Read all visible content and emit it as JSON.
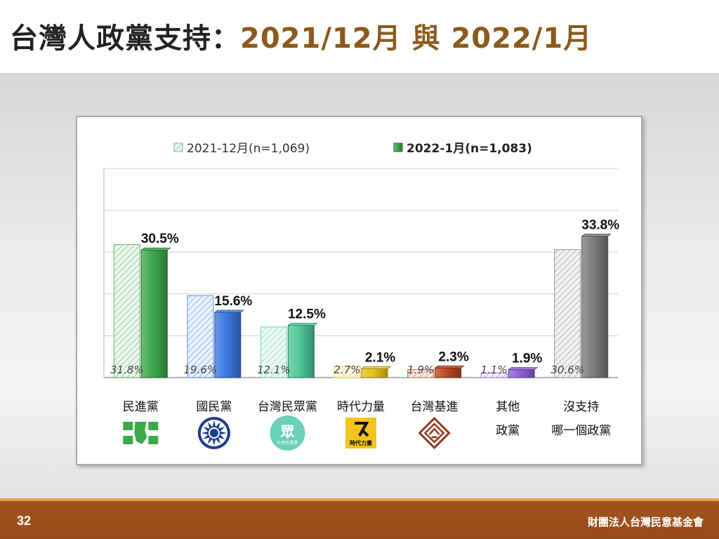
{
  "title": {
    "main": "台灣人政黨支持：",
    "period": "2021/12月 與 2022/1月"
  },
  "footer": {
    "page_number": "32",
    "organization": "財團法人台灣民意基金會"
  },
  "chart_data": {
    "type": "bar",
    "title": "",
    "xlabel": "",
    "ylabel": "",
    "ylim": [
      0,
      50
    ],
    "grid": true,
    "legend_position": "top",
    "categories": [
      {
        "label": "民進黨",
        "label2": "",
        "logo": "dpp-logo"
      },
      {
        "label": "國民黨",
        "label2": "",
        "logo": "kmt-logo"
      },
      {
        "label": "台灣民眾黨",
        "label2": "",
        "logo": "tpp-logo",
        "logo_text": "眾",
        "logo_sub": "台灣民眾黨"
      },
      {
        "label": "時代力量",
        "label2": "",
        "logo": "npp-logo",
        "logo_text": "時代力量"
      },
      {
        "label": "台灣基進",
        "label2": "",
        "logo": "tsp-logo"
      },
      {
        "label": "其他",
        "label2": "政黨",
        "logo": ""
      },
      {
        "label": "沒支持",
        "label2": "哪一個政黨",
        "logo": ""
      }
    ],
    "series": [
      {
        "name": "2021-12月(n=1,069)",
        "style": "hatched",
        "values": [
          31.8,
          19.6,
          12.1,
          2.7,
          1.9,
          1.1,
          30.6
        ],
        "labels": [
          "31.8%",
          "19.6%",
          "12.1%",
          "2.7%",
          "1.9%",
          "1.1%",
          "30.6%"
        ]
      },
      {
        "name": "2022-1月(n=1,083)",
        "style": "solid",
        "values": [
          30.5,
          15.6,
          12.5,
          2.1,
          2.3,
          1.9,
          33.8
        ],
        "labels": [
          "30.5%",
          "15.6%",
          "12.5%",
          "2.1%",
          "2.3%",
          "1.9%",
          "33.8%"
        ]
      }
    ],
    "colors": {
      "dpp": "#3ca84a",
      "kmt": "#3a78e0",
      "tpp": "#4cc79a",
      "npp": "#e8c21c",
      "tsp": "#b8471f",
      "other": "#8c5fd6",
      "none": "#7b7b7b"
    }
  }
}
